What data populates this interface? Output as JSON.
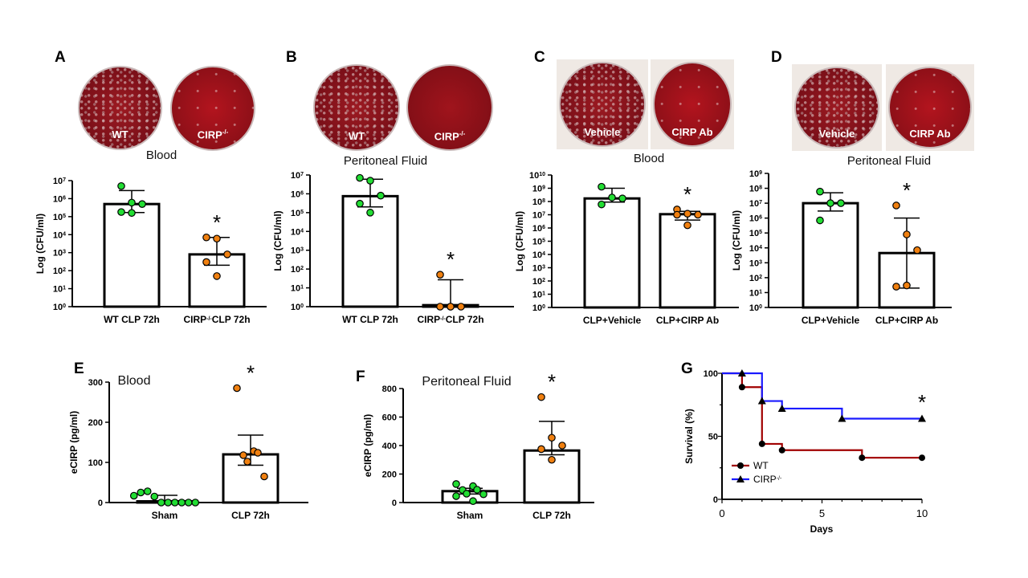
{
  "panels": {
    "A": {
      "letter": "A",
      "title": "Blood",
      "plates": [
        {
          "label": "WT"
        },
        {
          "label": "CIRP",
          "sup": "-/-"
        }
      ]
    },
    "B": {
      "letter": "B",
      "title": "Peritoneal Fluid",
      "plates": [
        {
          "label": "WT"
        },
        {
          "label": "CIRP",
          "sup": "-/-"
        }
      ]
    },
    "C": {
      "letter": "C",
      "title": "Blood",
      "plates": [
        {
          "label": "Vehicle"
        },
        {
          "label": "CIRP Ab"
        }
      ]
    },
    "D": {
      "letter": "D",
      "title": "Peritoneal Fluid",
      "plates": [
        {
          "label": "Vehicle"
        },
        {
          "label": "CIRP Ab"
        }
      ]
    },
    "E": {
      "letter": "E",
      "title": "Blood"
    },
    "F": {
      "letter": "F",
      "title": "Peritoneal Fluid"
    },
    "G": {
      "letter": "G"
    }
  },
  "colors": {
    "control_points": "#22dd33",
    "treated_points": "#f08010",
    "wt_line": "#a00000",
    "cirp_line": "#1a1aff"
  },
  "chart_data": [
    {
      "panel": "A",
      "type": "bar",
      "scale": "log",
      "ylabel": "Log (CFU/ml)",
      "ylim": [
        1,
        10000000
      ],
      "yticks_exp": [
        0,
        1,
        2,
        3,
        4,
        5,
        6,
        7
      ],
      "categories": [
        {
          "label": "WT CLP 72h"
        },
        {
          "label": "CIRP",
          "sup": "-/-",
          "label2": "CLP 72h"
        }
      ],
      "values": [
        500000,
        800
      ],
      "error": [
        [
          170000,
          2800000
        ],
        [
          200,
          7000
        ]
      ],
      "points": [
        [
          5000000,
          600000,
          500000,
          180000,
          160000
        ],
        [
          7000,
          6000,
          800,
          300,
          50
        ]
      ],
      "significance": [
        null,
        "*"
      ]
    },
    {
      "panel": "B",
      "type": "bar",
      "scale": "log",
      "ylabel": "Log (CFU/ml)",
      "ylim": [
        1,
        10000000
      ],
      "yticks_exp": [
        0,
        1,
        2,
        3,
        4,
        5,
        6,
        7
      ],
      "categories": [
        {
          "label": "WT CLP 72h"
        },
        {
          "label": "CIRP",
          "sup": "-/-",
          "label2": "CLP 72h"
        }
      ],
      "values": [
        750000,
        1.2
      ],
      "error": [
        [
          200000,
          6000000
        ],
        [
          1,
          27
        ]
      ],
      "points": [
        [
          7000000,
          5000000,
          800000,
          300000,
          100000
        ],
        [
          50,
          1,
          1,
          1,
          1
        ]
      ],
      "significance": [
        null,
        "*"
      ]
    },
    {
      "panel": "C",
      "type": "bar",
      "scale": "log",
      "ylabel": "Log (CFU/ml)",
      "ylim": [
        1,
        10000000000
      ],
      "yticks_exp": [
        0,
        1,
        2,
        3,
        4,
        5,
        6,
        7,
        8,
        9,
        10
      ],
      "categories": [
        {
          "label": "CLP+Vehicle"
        },
        {
          "label": "CLP+CIRP Ab"
        }
      ],
      "values": [
        170000000,
        11000000
      ],
      "error": [
        [
          90000000,
          1000000000
        ],
        [
          4000000,
          18000000
        ]
      ],
      "points": [
        [
          1300000000,
          200000000,
          170000000,
          60000000
        ],
        [
          25000000,
          12000000,
          10000000,
          10000000,
          1600000
        ]
      ],
      "significance": [
        null,
        "*"
      ]
    },
    {
      "panel": "D",
      "type": "bar",
      "scale": "log",
      "ylabel": "Log (CFU/ml)",
      "ylim": [
        1,
        1000000000
      ],
      "yticks_exp": [
        0,
        1,
        2,
        3,
        4,
        5,
        6,
        7,
        8,
        9
      ],
      "categories": [
        {
          "label": "CLP+Vehicle"
        },
        {
          "label": "CLP+CIRP Ab"
        }
      ],
      "values": [
        10000000,
        4500
      ],
      "error": [
        [
          3000000,
          50000000
        ],
        [
          20,
          1000000
        ]
      ],
      "points": [
        [
          60000000,
          10000000,
          10000000,
          700000
        ],
        [
          7000000,
          80000,
          7000,
          25,
          30
        ]
      ],
      "significance": [
        null,
        "*"
      ]
    },
    {
      "panel": "E",
      "type": "bar",
      "scale": "linear",
      "ylabel": "eCIRP (pg/ml)",
      "ylim": [
        0,
        300
      ],
      "yticks": [
        0,
        100,
        200,
        300
      ],
      "categories": [
        {
          "label": "Sham"
        },
        {
          "label": "CLP 72h"
        }
      ],
      "values": [
        3,
        120
      ],
      "error": [
        [
          0,
          18
        ],
        [
          93,
          168
        ]
      ],
      "points": [
        [
          17,
          25,
          28,
          15,
          0,
          0,
          0,
          0,
          0,
          0
        ],
        [
          285,
          128,
          124,
          118,
          102,
          65
        ]
      ],
      "significance": [
        null,
        "*"
      ]
    },
    {
      "panel": "F",
      "type": "bar",
      "scale": "linear",
      "ylabel": "eCIRP (pg/ml)",
      "ylim": [
        0,
        800
      ],
      "yticks": [
        0,
        200,
        400,
        600,
        800
      ],
      "categories": [
        {
          "label": "Sham"
        },
        {
          "label": "CLP 72h"
        }
      ],
      "values": [
        80,
        365
      ],
      "error": [
        [
          60,
          100
        ],
        [
          335,
          570
        ]
      ],
      "points": [
        [
          130,
          115,
          90,
          88,
          62,
          58,
          45,
          10
        ],
        [
          740,
          455,
          400,
          375,
          300
        ]
      ],
      "significance": [
        null,
        "*"
      ]
    },
    {
      "panel": "G",
      "type": "line",
      "subtype": "kaplan-meier",
      "xlabel": "Days",
      "ylabel": "Survival (%)",
      "xlim": [
        0,
        10
      ],
      "ylim": [
        0,
        100
      ],
      "xticks": [
        0,
        5,
        10
      ],
      "yticks": [
        0,
        50,
        100
      ],
      "legend": "bottom-left",
      "series": [
        {
          "name": "WT",
          "marker": "circle",
          "x": [
            0,
            1,
            2,
            3,
            7,
            10
          ],
          "y": [
            100,
            89,
            44,
            39,
            33,
            33
          ]
        },
        {
          "name": "CIRP",
          "sup": "-/-",
          "marker": "triangle",
          "x": [
            0,
            1,
            2,
            3,
            6,
            10
          ],
          "y": [
            100,
            100,
            78,
            72,
            64,
            64
          ]
        }
      ],
      "significance": "*"
    }
  ]
}
